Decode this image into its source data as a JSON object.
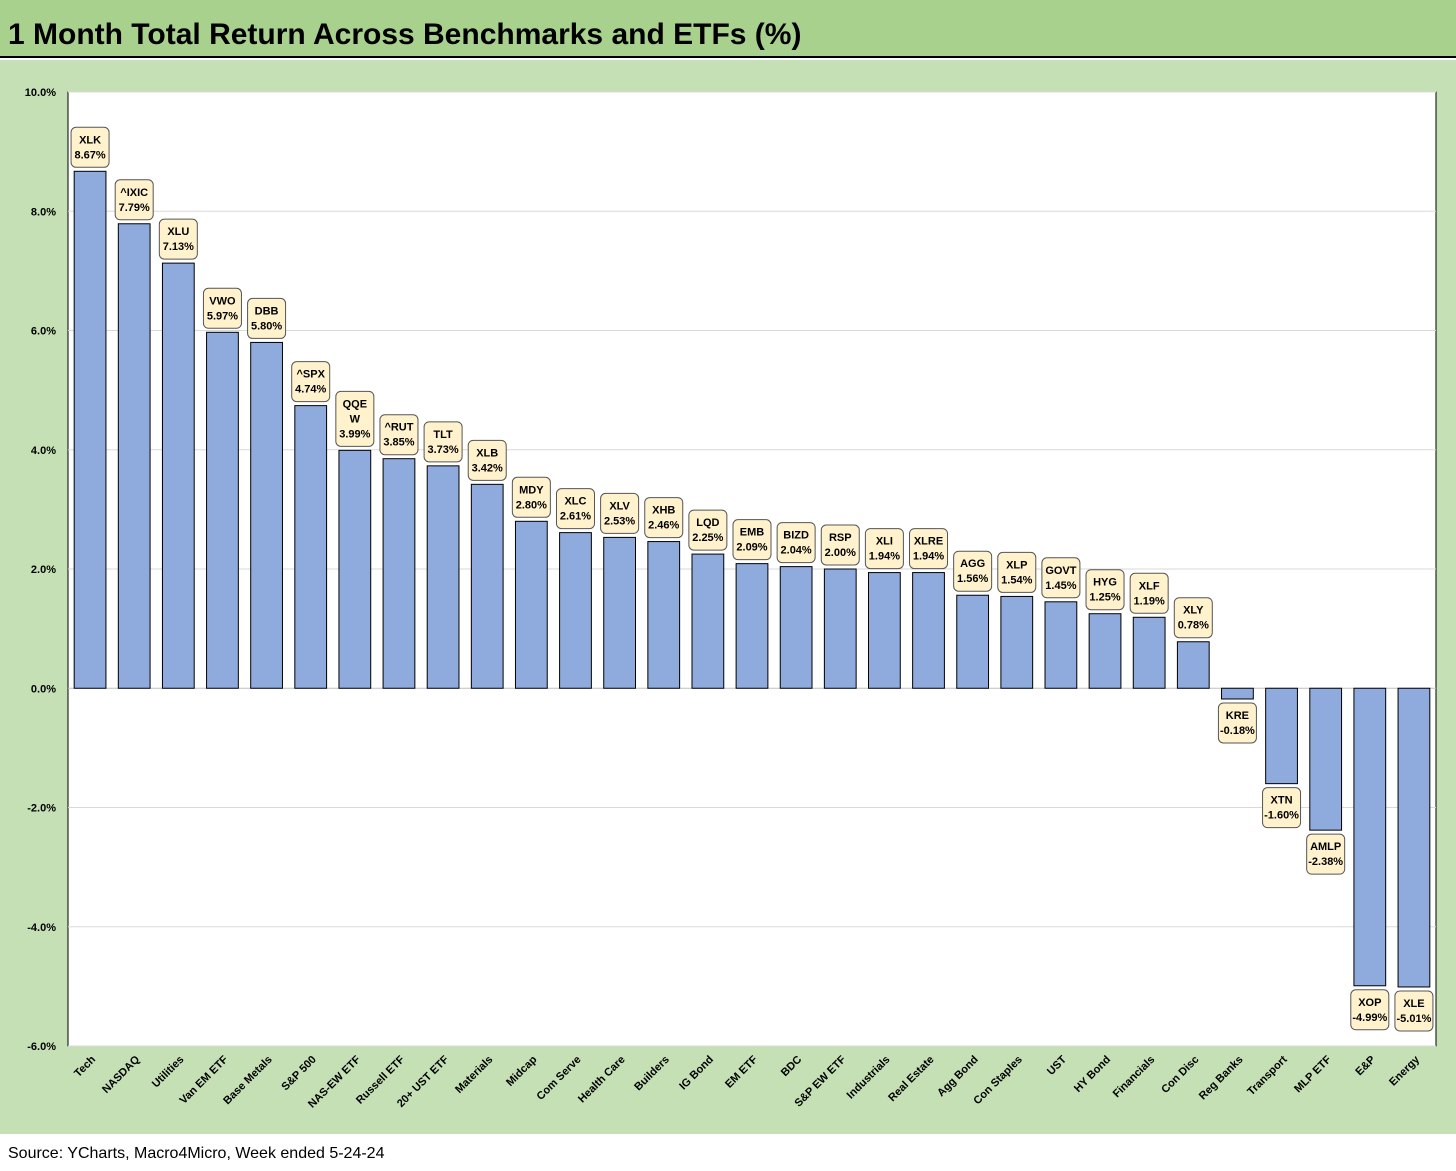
{
  "title": "1 Month Total Return Across Benchmarks and ETFs (%)",
  "source": "Source: YCharts, Macro4Micro, Week ended 5-24-24",
  "colors": {
    "header_bg": "#a9d18e",
    "panel_bg": "#c5e0b4",
    "plot_bg": "#ffffff",
    "bar_fill": "#8faadc",
    "bar_stroke": "#000000",
    "label_bg": "#fff2cc"
  },
  "chart_data": {
    "type": "bar",
    "title": "1 Month Total Return Across Benchmarks and ETFs (%)",
    "xlabel": "",
    "ylabel": "",
    "ylim": [
      -6,
      10
    ],
    "yticks": [
      10,
      8,
      6,
      4,
      2,
      0,
      -2,
      -4,
      -6
    ],
    "ytick_labels": [
      "10.0%",
      "8.0%",
      "6.0%",
      "4.0%",
      "2.0%",
      "0.0%",
      "-2.0%",
      "-4.0%",
      "-6.0%"
    ],
    "grid": true,
    "legend": "none",
    "categories": [
      "Tech",
      "NASDAQ",
      "Utilities",
      "Van EM ETF",
      "Base Metals",
      "S&P 500",
      "NAS-EW ETF",
      "Russell ETF",
      "20+ UST ETF",
      "Materials",
      "Midcap",
      "Com Serve",
      "Health Care",
      "Builders",
      "IG Bond",
      "EM ETF",
      "BDC",
      "S&P EW ETF",
      "Industrials",
      "Real Estate",
      "Agg Bond",
      "Con Staples",
      "UST",
      "HY Bond",
      "Financials",
      "Con Disc",
      "Reg Banks",
      "Transport",
      "MLP ETF",
      "E&P",
      "Energy"
    ],
    "tickers": [
      "XLK",
      "^IXIC",
      "XLU",
      "VWO",
      "DBB",
      "^SPX",
      "QQEW",
      "^RUT",
      "TLT",
      "XLB",
      "MDY",
      "XLC",
      "XLV",
      "XHB",
      "LQD",
      "EMB",
      "BIZD",
      "RSP",
      "XLI",
      "XLRE",
      "AGG",
      "XLP",
      "GOVT",
      "HYG",
      "XLF",
      "XLY",
      "KRE",
      "XTN",
      "AMLP",
      "XOP",
      "XLE"
    ],
    "ticker_label_lines": [
      [
        "XLK"
      ],
      [
        "^IXIC"
      ],
      [
        "XLU"
      ],
      [
        "VWO"
      ],
      [
        "DBB"
      ],
      [
        "^SPX"
      ],
      [
        "QQE",
        "W"
      ],
      [
        "^RUT"
      ],
      [
        "TLT"
      ],
      [
        "XLB"
      ],
      [
        "MDY"
      ],
      [
        "XLC"
      ],
      [
        "XLV"
      ],
      [
        "XHB"
      ],
      [
        "LQD"
      ],
      [
        "EMB"
      ],
      [
        "BIZD"
      ],
      [
        "RSP"
      ],
      [
        "XLI"
      ],
      [
        "XLRE"
      ],
      [
        "AGG"
      ],
      [
        "XLP"
      ],
      [
        "GOVT"
      ],
      [
        "HYG"
      ],
      [
        "XLF"
      ],
      [
        "XLY"
      ],
      [
        "KRE"
      ],
      [
        "XTN"
      ],
      [
        "AMLP"
      ],
      [
        "XOP"
      ],
      [
        "XLE"
      ]
    ],
    "values": [
      8.67,
      7.79,
      7.13,
      5.97,
      5.8,
      4.74,
      3.99,
      3.85,
      3.73,
      3.42,
      2.8,
      2.61,
      2.53,
      2.46,
      2.25,
      2.09,
      2.04,
      2.0,
      1.94,
      1.94,
      1.56,
      1.54,
      1.45,
      1.25,
      1.19,
      0.78,
      -0.18,
      -1.6,
      -2.38,
      -4.99,
      -5.01
    ],
    "value_labels": [
      "8.67%",
      "7.79%",
      "7.13%",
      "5.97%",
      "5.80%",
      "4.74%",
      "3.99%",
      "3.85%",
      "3.73%",
      "3.42%",
      "2.80%",
      "2.61%",
      "2.53%",
      "2.46%",
      "2.25%",
      "2.09%",
      "2.04%",
      "2.00%",
      "1.94%",
      "1.94%",
      "1.56%",
      "1.54%",
      "1.45%",
      "1.25%",
      "1.19%",
      "0.78%",
      "-0.18%",
      "-1.60%",
      "-2.38%",
      "-4.99%",
      "-5.01%"
    ]
  }
}
